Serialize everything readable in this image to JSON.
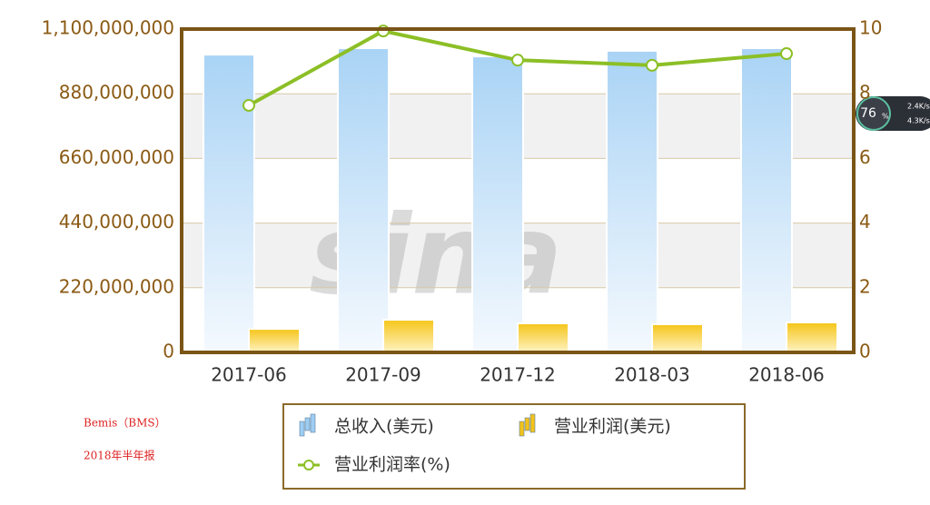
{
  "chart_data": {
    "type": "bar",
    "categories": [
      "2017-06",
      "2017-09",
      "2017-12",
      "2018-03",
      "2018-06"
    ],
    "series": [
      {
        "name": "总收入(美元)",
        "type": "bar",
        "color": "#9fcdf2",
        "values": [
          1013000000,
          1035000000,
          1007000000,
          1026000000,
          1035000000
        ]
      },
      {
        "name": "营业利润(美元)",
        "type": "bar",
        "color": "#f2c21c",
        "values": [
          80000000,
          111000000,
          99000000,
          96000000,
          102000000
        ]
      },
      {
        "name": "营业利润率(%)",
        "type": "line",
        "axis": "y2",
        "color": "#8cbf26",
        "values": [
          7.64,
          9.94,
          9.04,
          8.88,
          9.24
        ]
      }
    ],
    "ylim": [
      0,
      1100000000
    ],
    "yticks": [
      0,
      {
        "value": 220000000,
        "label": "220,000,000"
      },
      {
        "value": 440000000,
        "label": "440,000,000"
      },
      {
        "value": 660000000,
        "label": "660,000,000"
      },
      {
        "value": 880000000,
        "label": "880,000,000"
      },
      {
        "value": 1100000000,
        "label": "1,100,000,000"
      }
    ],
    "y2lim": [
      0,
      10
    ],
    "y2ticks": [
      0,
      2,
      4,
      6,
      8,
      10
    ],
    "grid": true,
    "legend": "bottom",
    "notes": [
      "Bemis（BMS）",
      "2018年半年报"
    ],
    "watermark": "sina"
  },
  "widget": {
    "percent": "76",
    "unit": "%",
    "up": "2.4K/s",
    "down": "4.3K/s"
  }
}
